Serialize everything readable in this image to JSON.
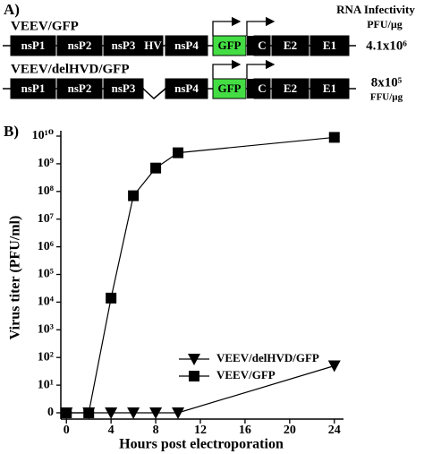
{
  "panel_a": {
    "label": "A)",
    "header": [
      "RNA Infectivity",
      "PFU/µg"
    ],
    "constructs": [
      {
        "name": "VEEV/GFP",
        "segments": [
          "nsP1",
          "nsP2",
          "nsP3",
          "HV",
          "nsP4",
          "GFP",
          "C",
          "E2",
          "E1"
        ],
        "infectivity": "4.1x10⁶"
      },
      {
        "name": "VEEV/delHVD/GFP",
        "segments": [
          "nsP1",
          "nsP2",
          "nsP3",
          "nsP4",
          "GFP",
          "C",
          "E2",
          "E1"
        ],
        "infectivity": "8x10⁵",
        "unit": "FFU/µg"
      }
    ]
  },
  "chart_data": {
    "type": "line",
    "panel_label": "B)",
    "x_label": "Hours post electroporation",
    "y_label": "Virus titer (PFU/ml)",
    "x": [
      0,
      2,
      4,
      6,
      8,
      10,
      24
    ],
    "series": [
      {
        "name": "VEEV/delHVD/GFP",
        "color": "#000000",
        "marker": "triangle-down",
        "values": [
          0,
          0,
          0,
          0,
          0,
          0,
          50
        ]
      },
      {
        "name": "VEEV/GFP",
        "color": "#000000",
        "marker": "square",
        "values": [
          0,
          0,
          14000,
          70000000,
          700000000,
          2500000000,
          9000000000
        ]
      }
    ],
    "xlim": [
      -0.5,
      24.5
    ],
    "xticks": [
      0,
      4,
      8,
      12,
      16,
      20,
      24
    ],
    "ylim": [
      1,
      10000000000
    ],
    "log_y": true,
    "yticks": [
      0,
      {
        "value": 10,
        "label": "10¹"
      },
      {
        "value": 100,
        "label": "10²"
      },
      {
        "value": 1000,
        "label": "10³"
      },
      {
        "value": 10000,
        "label": "10⁴"
      },
      {
        "value": 100000,
        "label": "10⁵"
      },
      {
        "value": 1000000,
        "label": "10⁶"
      },
      {
        "value": 10000000,
        "label": "10⁷"
      },
      {
        "value": 100000000,
        "label": "10⁸"
      },
      {
        "value": 1000000000,
        "label": "10⁹"
      },
      {
        "value": 10000000000,
        "label": "10¹⁰"
      }
    ],
    "legend": "lower right"
  }
}
